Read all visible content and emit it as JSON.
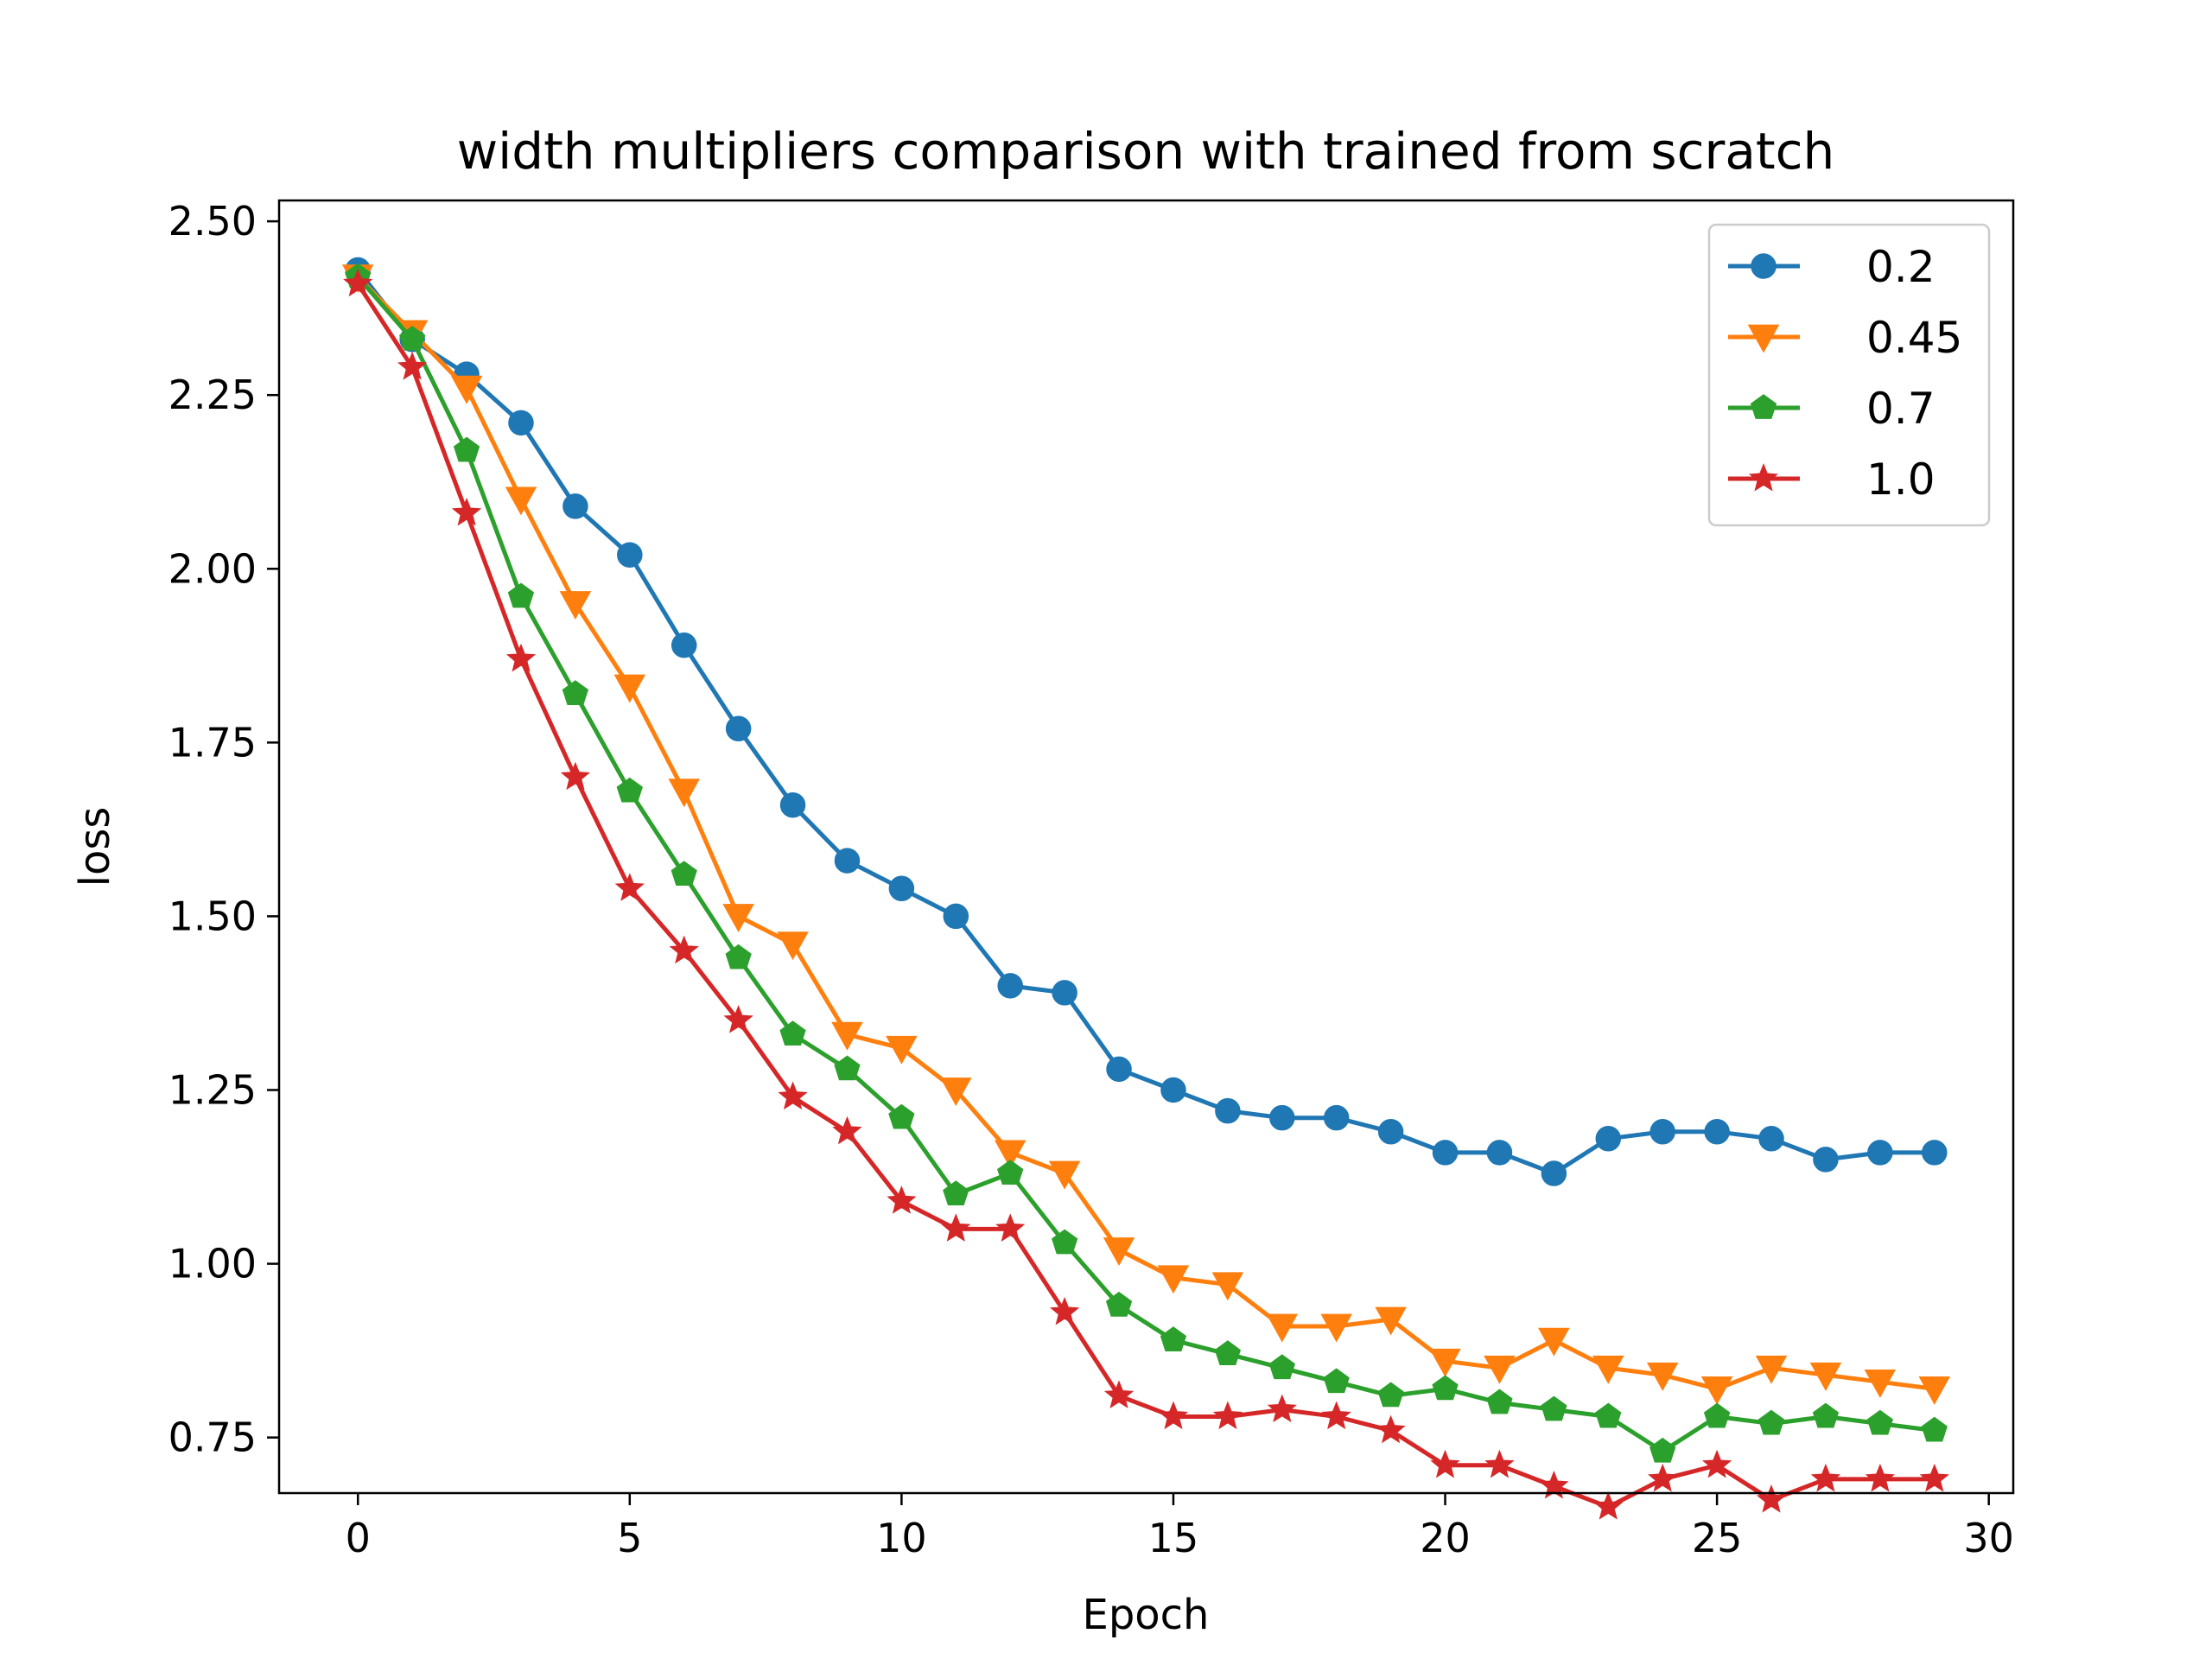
{
  "chart_data": {
    "type": "line",
    "title": "width multipliers comparison with trained from scratch",
    "xlabel": "Epoch",
    "ylabel": "loss",
    "xlim": [
      -1.45,
      30.45
    ],
    "ylim": [
      0.67,
      2.53
    ],
    "xticks": [
      0,
      5,
      10,
      15,
      20,
      25,
      30
    ],
    "xtick_labels": [
      "0",
      "5",
      "10",
      "15",
      "20",
      "25",
      "30"
    ],
    "yticks": [
      0.75,
      1.0,
      1.25,
      1.5,
      1.75,
      2.0,
      2.25,
      2.5
    ],
    "ytick_labels": [
      "0.75",
      "1.00",
      "1.25",
      "1.50",
      "1.75",
      "2.00",
      "2.25",
      "2.50"
    ],
    "grid": false,
    "legend_position": "top-right",
    "x": [
      0,
      1,
      2,
      3,
      4,
      5,
      6,
      7,
      8,
      9,
      10,
      11,
      12,
      13,
      14,
      15,
      16,
      17,
      18,
      19,
      20,
      21,
      22,
      23,
      24,
      25,
      26,
      27,
      28,
      29
    ],
    "series": [
      {
        "name": "0.2",
        "color": "#1f77b4",
        "marker": "circle",
        "values": [
          2.43,
          2.33,
          2.28,
          2.21,
          2.09,
          2.02,
          1.89,
          1.77,
          1.66,
          1.58,
          1.54,
          1.5,
          1.4,
          1.39,
          1.28,
          1.25,
          1.22,
          1.21,
          1.21,
          1.19,
          1.16,
          1.16,
          1.13,
          1.18,
          1.19,
          1.19,
          1.18,
          1.15,
          1.16,
          1.16
        ]
      },
      {
        "name": "0.45",
        "color": "#ff7f0e",
        "marker": "triangle-down",
        "values": [
          2.42,
          2.34,
          2.26,
          2.1,
          1.95,
          1.83,
          1.68,
          1.5,
          1.46,
          1.33,
          1.31,
          1.25,
          1.16,
          1.13,
          1.02,
          0.98,
          0.97,
          0.91,
          0.91,
          0.92,
          0.86,
          0.85,
          0.89,
          0.85,
          0.84,
          0.82,
          0.85,
          0.84,
          0.83,
          0.82
        ]
      },
      {
        "name": "0.7",
        "color": "#2ca02c",
        "marker": "pentagon",
        "values": [
          2.42,
          2.33,
          2.17,
          1.96,
          1.82,
          1.68,
          1.56,
          1.44,
          1.33,
          1.28,
          1.21,
          1.1,
          1.13,
          1.03,
          0.94,
          0.89,
          0.87,
          0.85,
          0.83,
          0.81,
          0.82,
          0.8,
          0.79,
          0.78,
          0.73,
          0.78,
          0.77,
          0.78,
          0.77,
          0.76
        ]
      },
      {
        "name": "1.0",
        "color": "#d62728",
        "marker": "star",
        "values": [
          2.41,
          2.29,
          2.08,
          1.87,
          1.7,
          1.54,
          1.45,
          1.35,
          1.24,
          1.19,
          1.09,
          1.05,
          1.05,
          0.93,
          0.81,
          0.78,
          0.78,
          0.79,
          0.78,
          0.76,
          0.71,
          0.71,
          0.68,
          0.65,
          0.69,
          0.71,
          0.66,
          0.69,
          0.69,
          0.69
        ]
      }
    ]
  }
}
